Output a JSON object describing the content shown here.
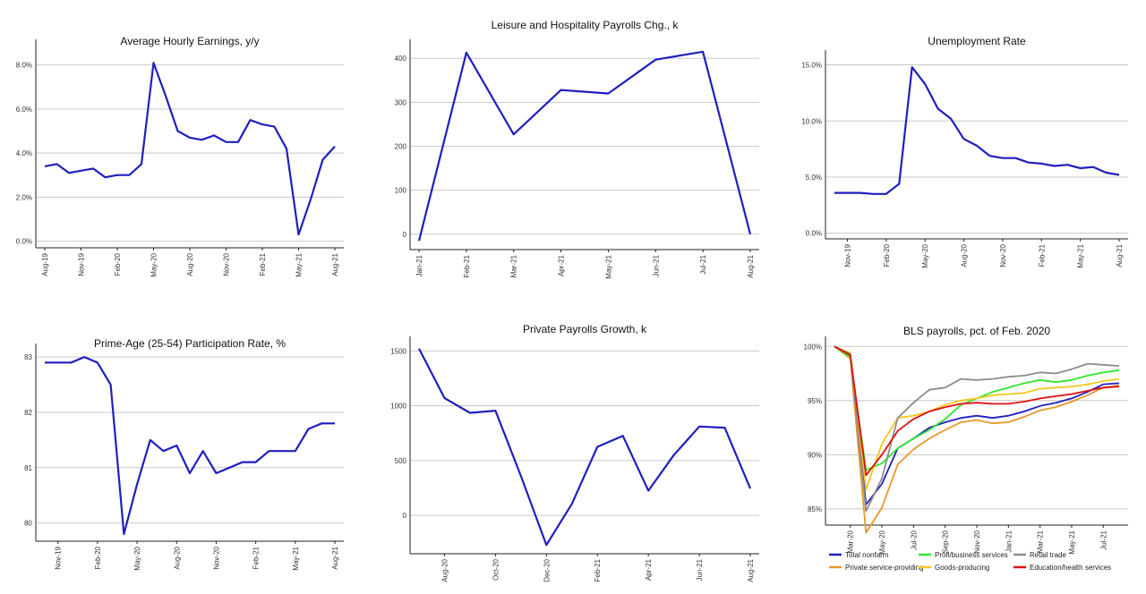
{
  "chart_data": [
    {
      "type": "line",
      "title": "Average Hourly Earnings, y/y",
      "xlabel": "",
      "ylabel": "",
      "x": [
        "Aug-19",
        "Sep-19",
        "Oct-19",
        "Nov-19",
        "Dec-19",
        "Jan-20",
        "Feb-20",
        "Mar-20",
        "Apr-20",
        "May-20",
        "Jun-20",
        "Jul-20",
        "Aug-20",
        "Sep-20",
        "Oct-20",
        "Nov-20",
        "Dec-20",
        "Jan-21",
        "Feb-21",
        "Mar-21",
        "Apr-21",
        "May-21",
        "Jun-21",
        "Jul-21",
        "Aug-21"
      ],
      "xticks": [
        "Aug-19",
        "Nov-19",
        "Feb-20",
        "May-20",
        "Aug-20",
        "Nov-20",
        "Feb-21",
        "May-21",
        "Aug-21"
      ],
      "yticks": [
        0,
        2,
        4,
        6,
        8
      ],
      "ytick_labels": [
        "0.0%",
        "2.0%",
        "4.0%",
        "6.0%",
        "8.0%"
      ],
      "ylim": [
        -0.3,
        9
      ],
      "grid": true,
      "series": [
        {
          "color": "#1f1fbf",
          "values": [
            3.4,
            3.5,
            3.1,
            3.2,
            3.3,
            2.9,
            3.0,
            3.0,
            3.5,
            8.1,
            6.6,
            5.0,
            4.7,
            4.6,
            4.8,
            4.5,
            4.5,
            5.5,
            5.3,
            5.2,
            4.2,
            0.3,
            1.9,
            3.7,
            4.3
          ]
        }
      ]
    },
    {
      "type": "line",
      "title": "Leisure and Hospitality Payrolls Chg., k",
      "xlabel": "",
      "ylabel": "",
      "x": [
        "Jan-21",
        "Feb-21",
        "Mar-21",
        "Apr-21",
        "May-21",
        "Jun-21",
        "Jul-21",
        "Aug-21"
      ],
      "xticks": [
        "Jan-21",
        "Feb-21",
        "Mar-21",
        "Apr-21",
        "May-21",
        "Jun-21",
        "Jul-21",
        "Aug-21"
      ],
      "yticks": [
        0,
        100,
        200,
        300,
        400
      ],
      "ytick_labels": [
        "0",
        "100",
        "200",
        "300",
        "400"
      ],
      "ylim": [
        -35,
        435
      ],
      "grid": true,
      "series": [
        {
          "color": "#1f1fbf",
          "values": [
            -15,
            413,
            227,
            328,
            320,
            397,
            415,
            0
          ]
        }
      ]
    },
    {
      "type": "line",
      "title": "Unemployment Rate",
      "xlabel": "",
      "ylabel": "",
      "x": [
        "Oct-19",
        "Nov-19",
        "Dec-19",
        "Jan-20",
        "Feb-20",
        "Mar-20",
        "Apr-20",
        "May-20",
        "Jun-20",
        "Jul-20",
        "Aug-20",
        "Sep-20",
        "Oct-20",
        "Nov-20",
        "Dec-20",
        "Jan-21",
        "Feb-21",
        "Mar-21",
        "Apr-21",
        "May-21",
        "Jun-21",
        "Jul-21",
        "Aug-21"
      ],
      "xticks": [
        "Nov-19",
        "Feb-20",
        "May-20",
        "Aug-20",
        "Nov-20",
        "Feb-21",
        "May-21",
        "Aug-21"
      ],
      "yticks": [
        0,
        5,
        10,
        15
      ],
      "ytick_labels": [
        "0.0%",
        "5.0%",
        "10.0%",
        "15.0%"
      ],
      "ylim": [
        -0.5,
        16
      ],
      "grid": true,
      "series": [
        {
          "color": "#1f1fbf",
          "values": [
            3.6,
            3.6,
            3.6,
            3.5,
            3.5,
            4.4,
            14.8,
            13.3,
            11.1,
            10.2,
            8.4,
            7.8,
            6.9,
            6.7,
            6.7,
            6.3,
            6.2,
            6.0,
            6.1,
            5.8,
            5.9,
            5.4,
            5.2
          ]
        }
      ]
    },
    {
      "type": "line",
      "title": "Prime-Age (25-54) Participation Rate, %",
      "xlabel": "",
      "ylabel": "",
      "x": [
        "Oct-19",
        "Nov-19",
        "Dec-19",
        "Jan-20",
        "Feb-20",
        "Mar-20",
        "Apr-20",
        "May-20",
        "Jun-20",
        "Jul-20",
        "Aug-20",
        "Sep-20",
        "Oct-20",
        "Nov-20",
        "Dec-20",
        "Jan-21",
        "Feb-21",
        "Mar-21",
        "Apr-21",
        "May-21",
        "Jun-21",
        "Jul-21",
        "Aug-21"
      ],
      "xticks": [
        "Nov-19",
        "Feb-20",
        "May-20",
        "Aug-20",
        "Nov-20",
        "Feb-21",
        "May-21",
        "Aug-21"
      ],
      "yticks": [
        80,
        81,
        82,
        83
      ],
      "ytick_labels": [
        "80",
        "81",
        "82",
        "83"
      ],
      "ylim": [
        79.67,
        83.18
      ],
      "grid": true,
      "series": [
        {
          "color": "#1f1fbf",
          "values": [
            82.9,
            82.9,
            82.9,
            83.0,
            82.9,
            82.5,
            79.8,
            80.7,
            81.5,
            81.3,
            81.4,
            80.9,
            81.3,
            80.9,
            81.0,
            81.1,
            81.1,
            81.3,
            81.3,
            81.3,
            81.7,
            81.8,
            81.8
          ]
        }
      ]
    },
    {
      "type": "line",
      "title": "Private Payrolls Growth, k",
      "xlabel": "",
      "ylabel": "",
      "x": [
        "Jul-20",
        "Aug-20",
        "Sep-20",
        "Oct-20",
        "Nov-20",
        "Dec-20",
        "Jan-21",
        "Feb-21",
        "Mar-21",
        "Apr-21",
        "May-21",
        "Jun-21",
        "Jul-21",
        "Aug-21"
      ],
      "xticks": [
        "Aug-20",
        "Oct-20",
        "Dec-20",
        "Feb-21",
        "Apr-21",
        "Jun-21",
        "Aug-21"
      ],
      "yticks": [
        0,
        500,
        1000,
        1500
      ],
      "ytick_labels": [
        "0",
        "500",
        "1000",
        "1500"
      ],
      "ylim": [
        -350,
        1600
      ],
      "grid": true,
      "series": [
        {
          "color": "#1f1fbf",
          "values": [
            1520,
            1070,
            935,
            955,
            360,
            -270,
            105,
            625,
            725,
            225,
            550,
            810,
            800,
            245
          ]
        }
      ]
    },
    {
      "type": "line",
      "title": "BLS payrolls, pct. of Feb. 2020",
      "xlabel": "",
      "ylabel": "",
      "x": [
        "Feb-20",
        "Mar-20",
        "Apr-20",
        "May-20",
        "Jun-20",
        "Jul-20",
        "Aug-20",
        "Sep-20",
        "Oct-20",
        "Nov-20",
        "Dec-20",
        "Jan-21",
        "Feb-21",
        "Mar-21",
        "Apr-21",
        "May-21",
        "Jun-21",
        "Jul-21",
        "Aug-21"
      ],
      "xticks": [
        "Mar-20",
        "May-20",
        "Jul-20",
        "Sep-20",
        "Nov-20",
        "Jan-21",
        "Mar-21",
        "May-21",
        "Jul-21"
      ],
      "yticks": [
        85,
        90,
        95,
        100
      ],
      "ytick_labels": [
        "85%",
        "90%",
        "95%",
        "100%"
      ],
      "ylim": [
        83.5,
        100.6
      ],
      "grid": true,
      "legend_position": "bottom",
      "series": [
        {
          "name": "Total nonfarm",
          "color": "#1f1fbf",
          "values": [
            100,
            99.1,
            85.4,
            87.3,
            90.6,
            91.5,
            92.5,
            93.0,
            93.4,
            93.6,
            93.4,
            93.6,
            94.0,
            94.5,
            94.8,
            95.2,
            95.8,
            96.5,
            96.6
          ]
        },
        {
          "name": "Private service-providing",
          "color": "#e8982c",
          "values": [
            100,
            98.9,
            82.8,
            85.1,
            89.1,
            90.5,
            91.5,
            92.3,
            93.0,
            93.2,
            92.9,
            93.0,
            93.5,
            94.1,
            94.4,
            94.9,
            95.5,
            96.2,
            96.4
          ]
        },
        {
          "name": "Profl/business services",
          "color": "#2ee82e",
          "values": [
            100,
            99.0,
            88.6,
            89.2,
            90.6,
            91.5,
            92.3,
            93.3,
            94.6,
            95.2,
            95.8,
            96.2,
            96.6,
            96.9,
            96.7,
            96.9,
            97.3,
            97.6,
            97.8
          ]
        },
        {
          "name": "Goods-producing",
          "color": "#f5c81e",
          "values": [
            100,
            99.4,
            86.8,
            91.0,
            93.4,
            93.6,
            94.0,
            94.6,
            95.0,
            95.2,
            95.5,
            95.6,
            95.7,
            96.1,
            96.2,
            96.3,
            96.5,
            96.8,
            97.0
          ]
        },
        {
          "name": "Retail trade",
          "color": "#8c8c8c",
          "values": [
            100,
            99.3,
            84.8,
            87.8,
            93.4,
            94.8,
            96.0,
            96.2,
            97.0,
            96.9,
            97.0,
            97.2,
            97.3,
            97.6,
            97.5,
            97.9,
            98.4,
            98.3,
            98.2
          ]
        },
        {
          "name": "Education/health services",
          "color": "#e01010",
          "values": [
            100,
            99.2,
            88.1,
            90.0,
            92.2,
            93.3,
            94.0,
            94.4,
            94.7,
            94.8,
            94.7,
            94.7,
            94.9,
            95.2,
            95.4,
            95.6,
            95.9,
            96.2,
            96.3
          ]
        }
      ]
    }
  ]
}
